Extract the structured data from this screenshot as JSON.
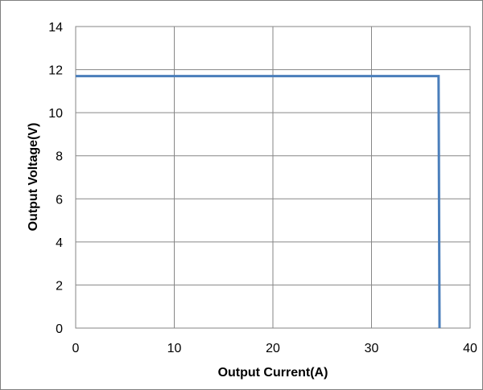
{
  "chart_data": {
    "type": "line",
    "title": "",
    "xlabel": "Output Current(A)",
    "ylabel": "Output Voltage(V)",
    "xlim": [
      0,
      40
    ],
    "ylim": [
      0,
      14
    ],
    "xticks": [
      "0",
      "10",
      "20",
      "30",
      "40"
    ],
    "yticks": [
      "0",
      "2",
      "4",
      "6",
      "8",
      "10",
      "12",
      "14"
    ],
    "grid": true,
    "legend": "none",
    "series": [
      {
        "x": [
          0,
          36.8,
          36.9
        ],
        "y": [
          11.7,
          11.7,
          0
        ],
        "color": "#4a7ebb"
      }
    ]
  }
}
